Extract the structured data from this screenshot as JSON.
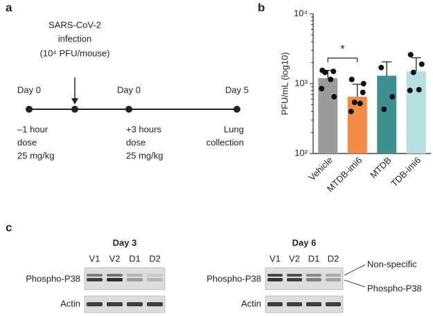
{
  "panel_labels": [
    "a",
    "b",
    "c"
  ],
  "timeline": {
    "infection": [
      "SARS-CoV-2",
      "infection",
      "(10⁴ PFU/mouse)"
    ],
    "days": [
      "Day 0",
      "Day 0",
      "Day 5"
    ],
    "notes": [
      [
        "–1 hour",
        "dose",
        "25 mg/kg"
      ],
      [
        "+3 hours",
        "dose",
        "25 mg/kg"
      ],
      [
        "Lung",
        "collection"
      ]
    ]
  },
  "chart_data": {
    "type": "bar",
    "ylabel": "PFU/mL (log10)",
    "categories": [
      "Vehicle",
      "MTDB-imi6",
      "MTDB",
      "TDB-imi6"
    ],
    "values": [
      1200,
      650,
      1300,
      1500
    ],
    "errors": [
      350,
      330,
      750,
      850
    ],
    "points": [
      [
        1550,
        1500,
        1450,
        1150,
        850,
        650
      ],
      [
        1150,
        750,
        540,
        520,
        400,
        1000
      ],
      [
        1700,
        650,
        430
      ],
      [
        2600,
        1900,
        1450,
        820,
        800
      ]
    ],
    "colors": [
      "#9a9a9a",
      "#f28c45",
      "#3e8f8f",
      "#b6dfe0"
    ],
    "log_scale": true,
    "ylim": [
      100,
      10000
    ],
    "yticks": [
      {
        "value": 100,
        "label": "10²"
      },
      {
        "value": 1000,
        "label": "10³"
      },
      {
        "value": 10000,
        "label": "10⁴"
      }
    ],
    "annotation": "*"
  },
  "blots": [
    {
      "title": "Day 3",
      "lanes": [
        "V1",
        "V2",
        "D1",
        "D2"
      ],
      "rows": [
        "Phospho-P38",
        "Actin"
      ]
    },
    {
      "title": "Day 6",
      "lanes": [
        "V1",
        "V2",
        "D1",
        "D2"
      ],
      "rows": [
        "Phospho-P38",
        "Actin"
      ],
      "band_labels": [
        "Non-specific",
        "Phospho-P38"
      ]
    }
  ]
}
